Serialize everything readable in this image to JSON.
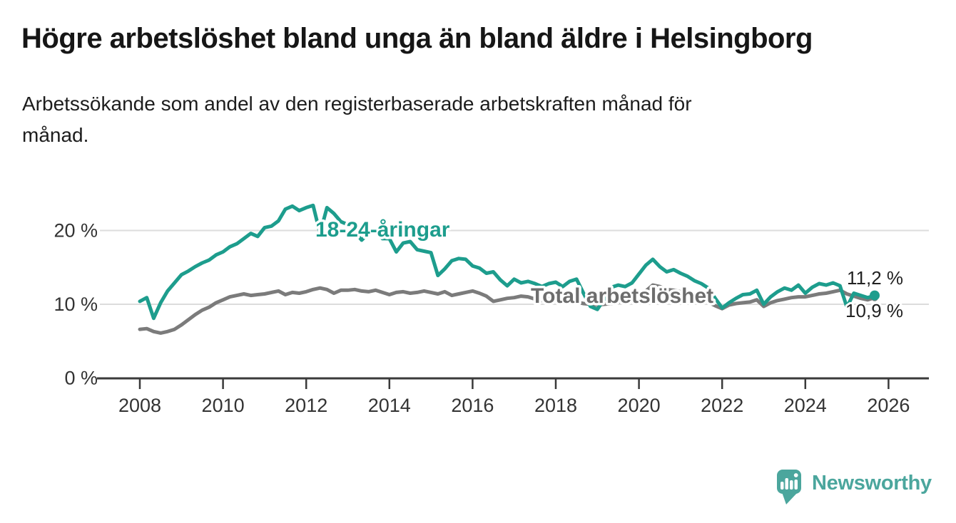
{
  "header": {
    "title": "Högre arbetslöshet bland unga än bland äldre i Helsingborg",
    "subtitle": "Arbetssökande som andel av den registerbaserade arbetskraften månad för\nmånad."
  },
  "chart_data": {
    "type": "line",
    "title": "Högre arbetslöshet bland unga än bland äldre i Helsingborg",
    "subtitle": "Arbetssökande som andel av den registerbaserade arbetskraften månad för månad.",
    "unit": "%",
    "x_start_year": 2008,
    "points_per_year": 6,
    "x_axis": {
      "ticks": [
        2008,
        2010,
        2012,
        2014,
        2016,
        2018,
        2020,
        2022,
        2024,
        2026
      ]
    },
    "y_axis": {
      "ticks": [
        {
          "label": "0 %",
          "value": 0
        },
        {
          "label": "10 %",
          "value": 10
        },
        {
          "label": "20 %",
          "value": 20
        }
      ],
      "range": [
        0,
        23.5
      ],
      "grid": true
    },
    "series": [
      {
        "name": "18-24-åringar",
        "color": "#1d9d8d",
        "end_label": "11,2 %",
        "end_value": 11.2,
        "values": [
          10.4,
          10.9,
          8.1,
          10.2,
          11.8,
          12.9,
          14.0,
          14.5,
          15.1,
          15.6,
          16.0,
          16.7,
          17.1,
          17.8,
          18.2,
          18.9,
          19.6,
          19.2,
          20.4,
          20.6,
          21.3,
          22.9,
          23.3,
          22.7,
          23.1,
          23.4,
          19.6,
          23.1,
          22.3,
          21.2,
          20.8,
          19.9,
          18.7,
          19.6,
          19.9,
          18.9,
          18.9,
          17.1,
          18.3,
          18.5,
          17.4,
          17.2,
          17.0,
          13.9,
          14.8,
          15.9,
          16.2,
          16.1,
          15.2,
          14.9,
          14.2,
          14.4,
          13.3,
          12.5,
          13.4,
          12.9,
          13.1,
          12.8,
          12.4,
          12.8,
          13.0,
          12.4,
          13.1,
          13.4,
          11.5,
          9.7,
          9.3,
          10.7,
          12.3,
          12.6,
          12.4,
          12.9,
          14.1,
          15.3,
          16.1,
          15.1,
          14.4,
          14.7,
          14.2,
          13.8,
          13.2,
          12.8,
          12.2,
          10.8,
          9.5,
          10.2,
          10.8,
          11.3,
          11.4,
          11.9,
          10.0,
          11.0,
          11.7,
          12.2,
          11.9,
          12.6,
          11.5,
          12.3,
          12.8,
          12.6,
          12.9,
          12.5,
          9.6,
          11.5,
          11.2,
          10.9,
          11.2
        ]
      },
      {
        "name": "Total arbetslöshet",
        "color": "#7b7b7b",
        "end_label": "10,9 %",
        "end_value": 10.9,
        "values": [
          6.6,
          6.7,
          6.3,
          6.1,
          6.3,
          6.6,
          7.2,
          7.9,
          8.6,
          9.2,
          9.6,
          10.2,
          10.6,
          11.0,
          11.2,
          11.4,
          11.2,
          11.3,
          11.4,
          11.6,
          11.8,
          11.3,
          11.6,
          11.5,
          11.7,
          12.0,
          12.2,
          12.0,
          11.5,
          11.9,
          11.9,
          12.0,
          11.8,
          11.7,
          11.9,
          11.6,
          11.3,
          11.6,
          11.7,
          11.5,
          11.6,
          11.8,
          11.6,
          11.4,
          11.7,
          11.2,
          11.4,
          11.6,
          11.8,
          11.5,
          11.1,
          10.4,
          10.6,
          10.8,
          10.9,
          11.1,
          11.0,
          10.7,
          10.5,
          10.8,
          10.5,
          10.3,
          10.5,
          10.3,
          10.1,
          10.0,
          9.9,
          10.0,
          10.1,
          10.3,
          10.5,
          10.7,
          11.0,
          11.8,
          12.6,
          12.4,
          12.0,
          11.9,
          11.7,
          11.4,
          11.1,
          10.7,
          10.3,
          9.8,
          9.4,
          9.9,
          10.1,
          10.2,
          10.3,
          10.6,
          9.7,
          10.2,
          10.5,
          10.7,
          10.9,
          11.0,
          11.0,
          11.2,
          11.4,
          11.5,
          11.7,
          11.9,
          11.4,
          11.1,
          10.8,
          10.6,
          10.9
        ]
      }
    ]
  },
  "footer": {
    "logo_text": "Newsworthy",
    "logo_color": "#4ba69d"
  }
}
